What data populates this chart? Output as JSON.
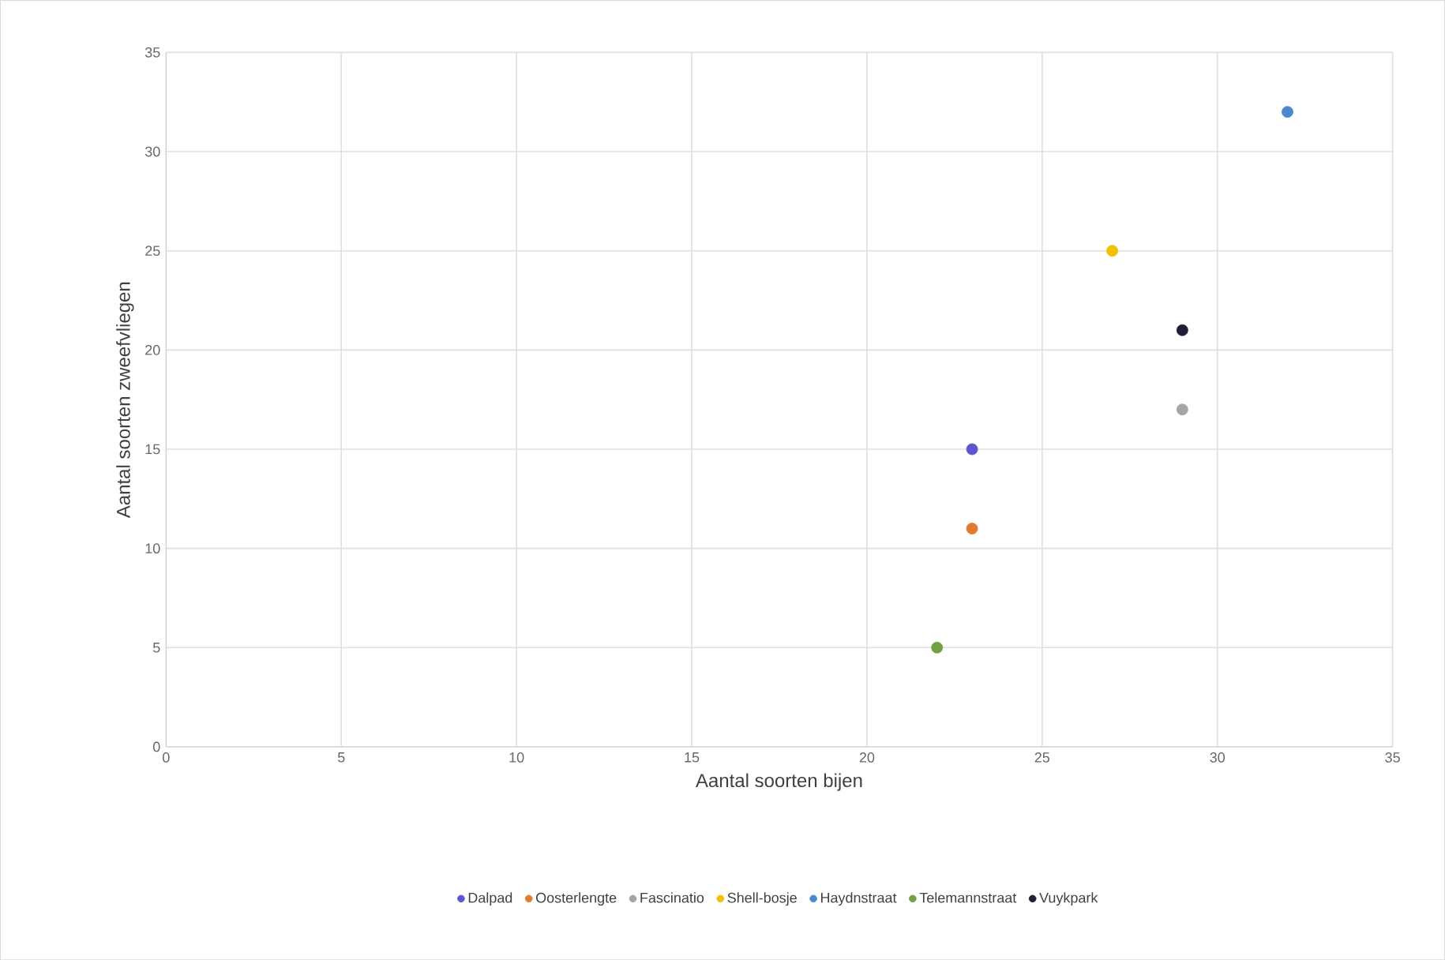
{
  "chart_data": {
    "type": "scatter",
    "xlabel": "Aantal soorten bijen",
    "ylabel": "Aantal soorten zweefvliegen",
    "series": [
      {
        "name": "Dalpad",
        "color": "#5b55d0",
        "x": [
          23
        ],
        "values": [
          15
        ]
      },
      {
        "name": "Oosterlengte",
        "color": "#e07b30",
        "x": [
          23
        ],
        "values": [
          11
        ]
      },
      {
        "name": "Fascinatio",
        "color": "#a5a5a5",
        "x": [
          29
        ],
        "values": [
          17
        ]
      },
      {
        "name": "Shell-bosje",
        "color": "#f5c000",
        "x": [
          27
        ],
        "values": [
          25
        ]
      },
      {
        "name": "Haydnstraat",
        "color": "#4a88d0",
        "x": [
          32
        ],
        "values": [
          32
        ]
      },
      {
        "name": "Telemannstraat",
        "color": "#70a040",
        "x": [
          22
        ],
        "values": [
          5
        ]
      },
      {
        "name": "Vuykpark",
        "color": "#1f2038",
        "x": [
          29
        ],
        "values": [
          21
        ]
      }
    ],
    "xlim": [
      0,
      35
    ],
    "ylim": [
      0,
      35
    ],
    "xticks": [
      0,
      5,
      10,
      15,
      20,
      25,
      30,
      35
    ],
    "yticks": [
      0,
      5,
      10,
      15,
      20,
      25,
      30,
      35
    ],
    "grid": true,
    "legend": "bottom",
    "marker": "circle"
  }
}
